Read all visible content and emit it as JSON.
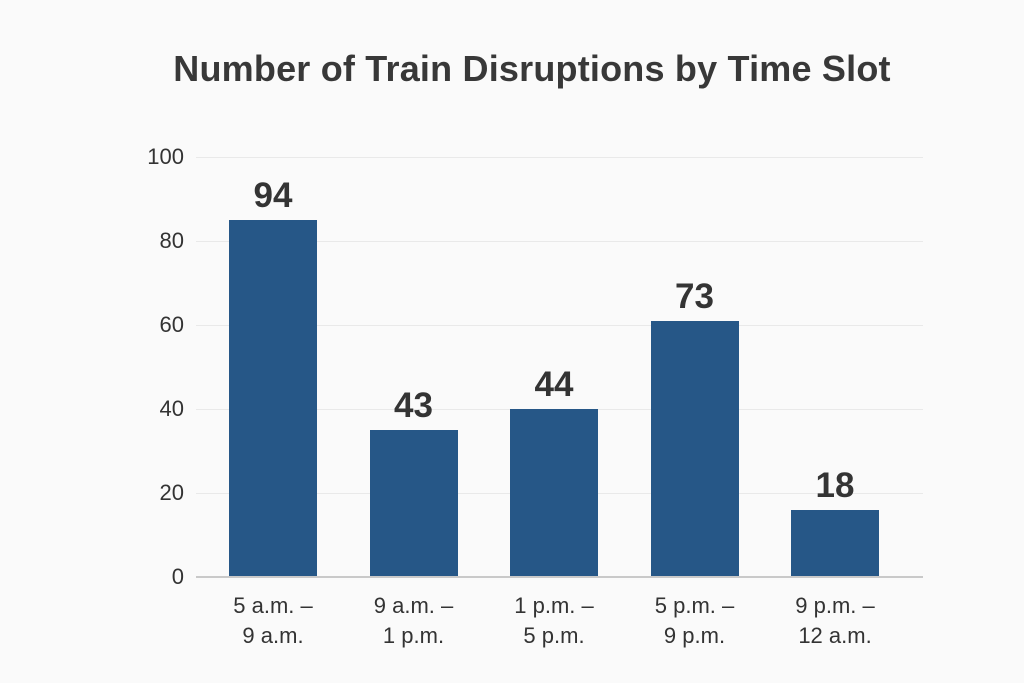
{
  "chart_data": {
    "type": "bar",
    "title": "Number of Train Disruptions by Time Slot",
    "categories": [
      "5 a.m. – 9 a.m.",
      "9 a.m. – 1 p.m.",
      "1 p.m. – 5 p.m.",
      "5 p.m. – 9 p.m.",
      "9 p.m. – 12 a.m."
    ],
    "category_lines": [
      [
        "5 a.m. –",
        "9 a.m."
      ],
      [
        "9 a.m. –",
        "1 p.m."
      ],
      [
        "1 p.m. –",
        "5 p.m."
      ],
      [
        "5 p.m. –",
        "9 p.m."
      ],
      [
        "9 p.m. –",
        "12 a.m."
      ]
    ],
    "values": [
      94,
      43,
      44,
      73,
      18
    ],
    "bar_heights_as_drawn": [
      85,
      35,
      40,
      61,
      16
    ],
    "y_ticks": [
      0,
      20,
      40,
      60,
      80,
      100
    ],
    "ylim": [
      0,
      100
    ],
    "xlabel": "",
    "ylabel": "",
    "grid": "horizontal",
    "legend": "none",
    "colors": {
      "bar": "#265787",
      "title_text": "#383838",
      "axis_text": "#333333",
      "value_label_text": "#343434",
      "gridline": "#e9e9e9",
      "axis_line": "#c9c9c9",
      "background": "#fafafa"
    }
  }
}
